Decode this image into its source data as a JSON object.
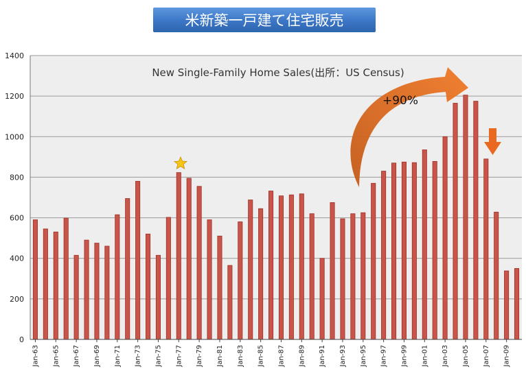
{
  "header": {
    "title": "米新築一戸建て住宅販売",
    "title_bg": "#3f7fd0",
    "title_color": "#ffffff"
  },
  "chart_data": {
    "type": "bar",
    "title": "New Single-Family Home Sales(出所：US Census)",
    "xlabel": "",
    "ylabel": "",
    "ylim": [
      0,
      1400
    ],
    "yticks": [
      0,
      200,
      400,
      600,
      800,
      1000,
      1200,
      1400
    ],
    "grid": true,
    "legend": "none",
    "bar_color": "#c8554a",
    "plot_bg": "#eeeeee",
    "categories": [
      "Jan-63",
      "Jan-64",
      "Jan-65",
      "Jan-66",
      "Jan-67",
      "Jan-68",
      "Jan-69",
      "Jan-70",
      "Jan-71",
      "Jan-72",
      "Jan-73",
      "Jan-74",
      "Jan-75",
      "Jan-76",
      "Jan-77",
      "Jan-78",
      "Jan-79",
      "Jan-80",
      "Jan-81",
      "Jan-82",
      "Jan-83",
      "Jan-84",
      "Jan-85",
      "Jan-86",
      "Jan-87",
      "Jan-88",
      "Jan-89",
      "Jan-90",
      "Jan-91",
      "Jan-92",
      "Jan-93",
      "Jan-94",
      "Jan-95",
      "Jan-96",
      "Jan-97",
      "Jan-98",
      "Jan-99",
      "Jan-00",
      "Jan-01",
      "Jan-02",
      "Jan-03",
      "Jan-04",
      "Jan-05",
      "Jan-06",
      "Jan-07",
      "Jan-08",
      "Jan-09",
      "Jan-10"
    ],
    "tick_labels": [
      "Jan-63",
      "Jan-65",
      "Jan-67",
      "Jan-69",
      "Jan-71",
      "Jan-73",
      "Jan-75",
      "Jan-77",
      "Jan-79",
      "Jan-81",
      "Jan-83",
      "Jan-85",
      "Jan-87",
      "Jan-89",
      "Jan-91",
      "Jan-93",
      "Jan-95",
      "Jan-97",
      "Jan-99",
      "Jan-01",
      "Jan-03",
      "Jan-05",
      "Jan-07",
      "Jan-09"
    ],
    "values": [
      590,
      545,
      530,
      598,
      415,
      490,
      475,
      460,
      615,
      695,
      780,
      520,
      415,
      602,
      823,
      795,
      755,
      590,
      510,
      365,
      580,
      688,
      645,
      732,
      708,
      713,
      718,
      620,
      400,
      675,
      595,
      620,
      625,
      770,
      830,
      870,
      875,
      872,
      935,
      878,
      1000,
      1165,
      1205,
      1175,
      890,
      628,
      338,
      350
    ],
    "annotations": [
      {
        "text": "+90%",
        "type": "curved-arrow",
        "from_category": "Jan-95",
        "to_category": "Jan-05",
        "color": "#e06a1e"
      },
      {
        "text": "",
        "type": "down-arrow",
        "at_category": "Jan-07",
        "color": "#e06a1e"
      },
      {
        "text": "",
        "type": "star-marker",
        "at_category": "Jan-77",
        "color": "#f5c518"
      }
    ]
  }
}
